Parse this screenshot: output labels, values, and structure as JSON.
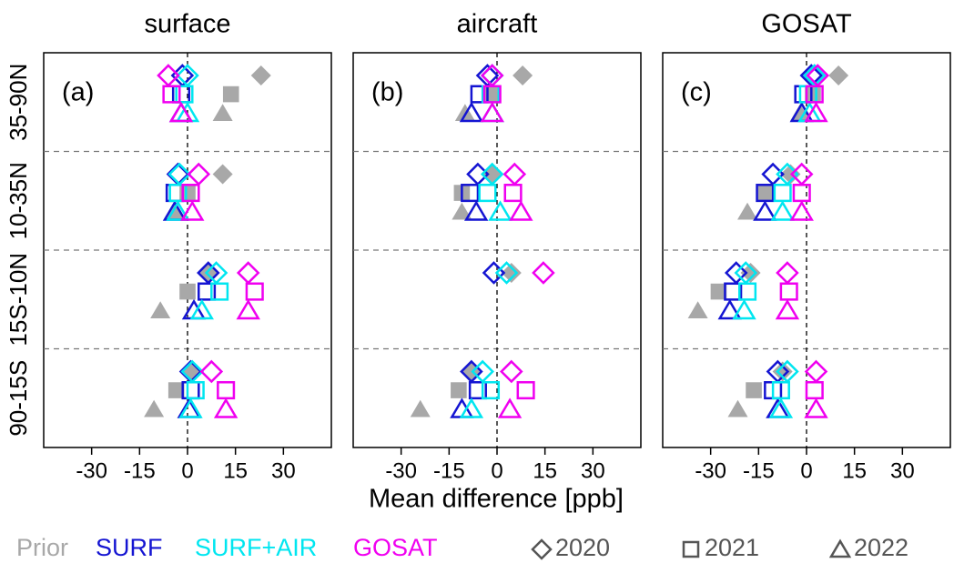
{
  "chart_data": {
    "type": "scatter",
    "xlabel": "Mean difference [ppb]",
    "panels": [
      {
        "title": "surface",
        "label": "(a)"
      },
      {
        "title": "aircraft",
        "label": "(b)"
      },
      {
        "title": "GOSAT",
        "label": "(c)"
      }
    ],
    "categories": [
      "35-90N",
      "10-35N",
      "15S-10N",
      "90-15S"
    ],
    "years": [
      "2020",
      "2021",
      "2022"
    ],
    "markers": [
      "diamond",
      "square",
      "triangle"
    ],
    "xlim": [
      -45,
      45
    ],
    "xticks": [
      -30,
      -15,
      0,
      15,
      30
    ],
    "vline": 0,
    "series": [
      {
        "name": "Prior",
        "color": "#a8a8a8",
        "filled": true,
        "values": [
          [
            [
              23,
              13.6,
              11
            ],
            [
              11,
              0,
              -4
            ],
            [
              6.5,
              0,
              -8.5
            ],
            [
              1,
              -3.5,
              -10.5
            ]
          ],
          [
            [
              8,
              -1.5,
              -10
            ],
            [
              -1.5,
              -11,
              -11
            ],
            [
              4.5,
              null,
              null
            ],
            [
              -8.5,
              -12,
              -24
            ]
          ],
          [
            [
              10,
              2,
              -2
            ],
            [
              -5,
              -13,
              -18.5
            ],
            [
              -17.5,
              -27.5,
              -34
            ],
            [
              -7.5,
              -16.5,
              -21.5
            ]
          ]
        ]
      },
      {
        "name": "SURF",
        "color": "#1414d2",
        "filled": false,
        "values": [
          [
            [
              -1.6,
              -2,
              -2
            ],
            [
              -3,
              -4,
              -4
            ],
            [
              6.5,
              6,
              2
            ],
            [
              1,
              1,
              0.5
            ]
          ],
          [
            [
              -3,
              -5.5,
              -8
            ],
            [
              -6,
              -8.5,
              -6.5
            ],
            [
              -1,
              null,
              null
            ],
            [
              -8,
              -6,
              -11
            ]
          ],
          [
            [
              1.5,
              -1,
              -1.5
            ],
            [
              -10.5,
              -13,
              -13
            ],
            [
              -22,
              -23,
              -24
            ],
            [
              -9,
              -10.5,
              -9
            ]
          ]
        ]
      },
      {
        "name": "SURF+AIR",
        "color": "#00e6f0",
        "filled": false,
        "values": [
          [
            [
              0,
              -1,
              0
            ],
            [
              -2.5,
              -3,
              -3
            ],
            [
              9,
              10,
              4.5
            ],
            [
              1.5,
              2.5,
              1
            ]
          ],
          [
            [
              -1.5,
              -2,
              -1.5
            ],
            [
              -1.5,
              -3,
              1
            ],
            [
              3,
              null,
              null
            ],
            [
              -4.5,
              -2,
              -8
            ]
          ],
          [
            [
              2.5,
              0.5,
              1
            ],
            [
              -6,
              -7.5,
              -7.5
            ],
            [
              -19,
              -18.5,
              -19.5
            ],
            [
              -6,
              -8,
              -8
            ]
          ]
        ]
      },
      {
        "name": "GOSAT",
        "color": "#f000f0",
        "filled": false,
        "values": [
          [
            [
              -6,
              -5,
              -2
            ],
            [
              3.5,
              1,
              1.5
            ],
            [
              19,
              21,
              19
            ],
            [
              7.5,
              12,
              12
            ]
          ],
          [
            [
              -1.5,
              -1.5,
              -1.5
            ],
            [
              5.5,
              5,
              7.5
            ],
            [
              14.5,
              null,
              null
            ],
            [
              4.5,
              9,
              4
            ]
          ],
          [
            [
              3.5,
              2.5,
              3
            ],
            [
              -1.5,
              -1.5,
              -1.5
            ],
            [
              -6,
              -5.5,
              -6
            ],
            [
              3,
              2.5,
              3
            ]
          ]
        ]
      }
    ]
  }
}
